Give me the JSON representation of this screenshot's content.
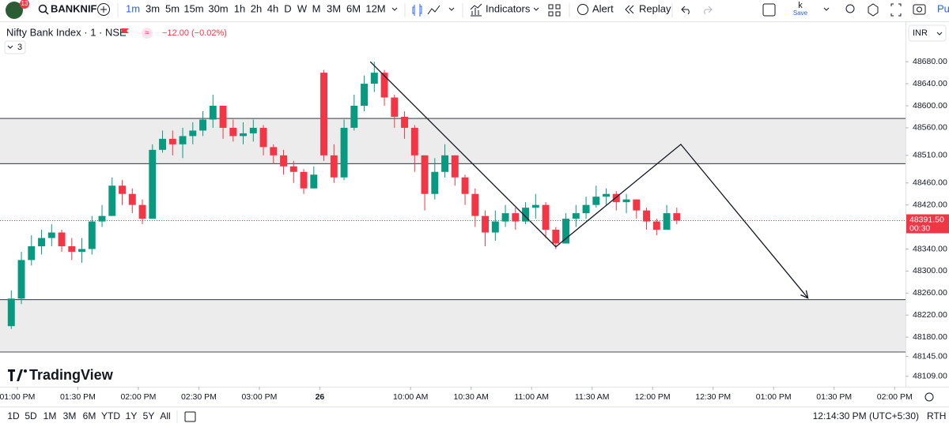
{
  "ui": {
    "badge": "13",
    "symbol": "BANKNIF",
    "intervals": [
      "1m",
      "3m",
      "5m",
      "15m",
      "30m",
      "1h",
      "2h",
      "4h",
      "D",
      "W",
      "M",
      "3M",
      "6M",
      "12M"
    ],
    "indicators": "Indicators",
    "alert": "Alert",
    "replay": "Replay",
    "save_top": "k",
    "save": "Save",
    "profile": "Pu",
    "legend_title": "Nifty Bank Index · 1 · NSE",
    "change": "−12.00 (−0.02%)",
    "collapsed_count": "3",
    "currency": "INR",
    "brand": "TradingView",
    "ranges": [
      "1D",
      "5D",
      "1M",
      "3M",
      "6M",
      "YTD",
      "1Y",
      "5Y",
      "All"
    ],
    "clock": "12:14:30 PM (UTC+5:30)",
    "session": "RTH"
  },
  "chart_data": {
    "type": "candlestick",
    "up_color": "#089981",
    "down_color": "#f23645",
    "x": [
      -3,
      2,
      7,
      12,
      17,
      22,
      27,
      32,
      37,
      42,
      47,
      52,
      57,
      62,
      67,
      72,
      77,
      82,
      87,
      92,
      97,
      102,
      107,
      112,
      117,
      122,
      127,
      132,
      137,
      142,
      147,
      152,
      157,
      162,
      167,
      172,
      177,
      182,
      187,
      192,
      197,
      202,
      207,
      212,
      217,
      222,
      227,
      232,
      237,
      242,
      247,
      252,
      257,
      262,
      267,
      272,
      277,
      282,
      287,
      292,
      297,
      302,
      307,
      312,
      317,
      322,
      327
    ],
    "open": [
      48200,
      48250,
      48320,
      48345,
      48360,
      48370,
      48345,
      48335,
      48340,
      48390,
      48400,
      48455,
      48440,
      48420,
      48395,
      48520,
      48540,
      48530,
      48545,
      48555,
      48575,
      48600,
      48560,
      48545,
      48550,
      48560,
      48525,
      48510,
      48490,
      48480,
      48450,
      48660,
      48510,
      48470,
      48560,
      48600,
      48640,
      48660,
      48615,
      48580,
      48560,
      48510,
      48440,
      48480,
      48510,
      48470,
      48440,
      48400,
      48370,
      48390,
      48405,
      48390,
      48415,
      48420,
      48375,
      48350,
      48395,
      48405,
      48420,
      48435,
      48440,
      48425,
      48430,
      48410,
      48390,
      48375,
      48405
    ],
    "high": [
      48265,
      48335,
      48365,
      48375,
      48385,
      48375,
      48360,
      48360,
      48400,
      48420,
      48470,
      48465,
      48450,
      48430,
      48530,
      48555,
      48555,
      48560,
      48570,
      48590,
      48620,
      48600,
      48575,
      48570,
      48575,
      48565,
      48530,
      48520,
      48500,
      48485,
      48490,
      48665,
      48530,
      48575,
      48620,
      48655,
      48680,
      48665,
      48620,
      48590,
      48565,
      48510,
      48505,
      48530,
      48510,
      48475,
      48450,
      48410,
      48410,
      48420,
      48415,
      48425,
      48440,
      48425,
      48380,
      48405,
      48420,
      48435,
      48455,
      48450,
      48445,
      48440,
      48430,
      48415,
      48395,
      48420,
      48415
    ],
    "low": [
      48195,
      48240,
      48310,
      48330,
      48345,
      48335,
      48320,
      48315,
      48330,
      48380,
      48400,
      48420,
      48405,
      48385,
      48395,
      48515,
      48510,
      48505,
      48530,
      48545,
      48560,
      48540,
      48535,
      48530,
      48535,
      48510,
      48495,
      48475,
      48460,
      48440,
      48450,
      48500,
      48460,
      48465,
      48555,
      48590,
      48625,
      48600,
      48560,
      48540,
      48480,
      48410,
      48430,
      48470,
      48455,
      48420,
      48380,
      48345,
      48355,
      48380,
      48375,
      48385,
      48395,
      48360,
      48340,
      48350,
      48380,
      48395,
      48415,
      48420,
      48410,
      48405,
      48395,
      48375,
      48365,
      48375,
      48385
    ],
    "close": [
      48250,
      48320,
      48345,
      48360,
      48370,
      48345,
      48335,
      48340,
      48390,
      48400,
      48455,
      48440,
      48420,
      48395,
      48520,
      48540,
      48530,
      48545,
      48555,
      48575,
      48600,
      48560,
      48545,
      48550,
      48560,
      48525,
      48510,
      48490,
      48480,
      48450,
      48475,
      48510,
      48470,
      48560,
      48600,
      48640,
      48660,
      48615,
      48580,
      48560,
      48510,
      48440,
      48480,
      48510,
      48470,
      48440,
      48400,
      48370,
      48390,
      48405,
      48390,
      48415,
      48420,
      48375,
      48350,
      48395,
      48405,
      48420,
      48435,
      48440,
      48425,
      48430,
      48410,
      48390,
      48375,
      48405,
      48391.5
    ],
    "zones": [
      [
        48577,
        48495
      ],
      [
        48248,
        48153
      ]
    ],
    "trend": {
      "x": [
        175,
        267,
        329,
        392
      ],
      "y": [
        48680,
        48344,
        48530,
        48251
      ]
    },
    "last_price": {
      "value": 48391.5,
      "label": "48391.50"
    },
    "countdown": "00:30",
    "xlim": [
      -8.6,
      440.4
    ],
    "ylim": [
      48090,
      48749
    ],
    "xticks": [
      {
        "value": 0,
        "label": "01:00 PM"
      },
      {
        "value": 30,
        "label": "01:30 PM"
      },
      {
        "value": 60,
        "label": "02:00 PM"
      },
      {
        "value": 90,
        "label": "02:30 PM"
      },
      {
        "value": 120,
        "label": "03:00 PM"
      },
      {
        "value": 150,
        "label": "26"
      },
      {
        "value": 195,
        "label": "10:00 AM"
      },
      {
        "value": 225,
        "label": "10:30 AM"
      },
      {
        "value": 255,
        "label": "11:00 AM"
      },
      {
        "value": 285,
        "label": "11:30 AM"
      },
      {
        "value": 315,
        "label": "12:00 PM"
      },
      {
        "value": 345,
        "label": "12:30 PM"
      },
      {
        "value": 375,
        "label": "01:00 PM"
      },
      {
        "value": 405,
        "label": "01:30 PM"
      },
      {
        "value": 435,
        "label": "02:00 PM"
      }
    ],
    "yticks": [
      {
        "value": 48680,
        "label": "48680.00"
      },
      {
        "value": 48640,
        "label": "48640.00"
      },
      {
        "value": 48600,
        "label": "48600.00"
      },
      {
        "value": 48560,
        "label": "48560.00"
      },
      {
        "value": 48510,
        "label": "48510.00"
      },
      {
        "value": 48460,
        "label": "48460.00"
      },
      {
        "value": 48420,
        "label": "48420.00"
      },
      {
        "value": 48340,
        "label": "48340.00"
      },
      {
        "value": 48300,
        "label": "48300.00"
      },
      {
        "value": 48260,
        "label": "48260.00"
      },
      {
        "value": 48220,
        "label": "48220.00"
      },
      {
        "value": 48180,
        "label": "48180.00"
      },
      {
        "value": 48145,
        "label": "48145.00"
      },
      {
        "value": 48109,
        "label": "48109.00"
      }
    ]
  }
}
